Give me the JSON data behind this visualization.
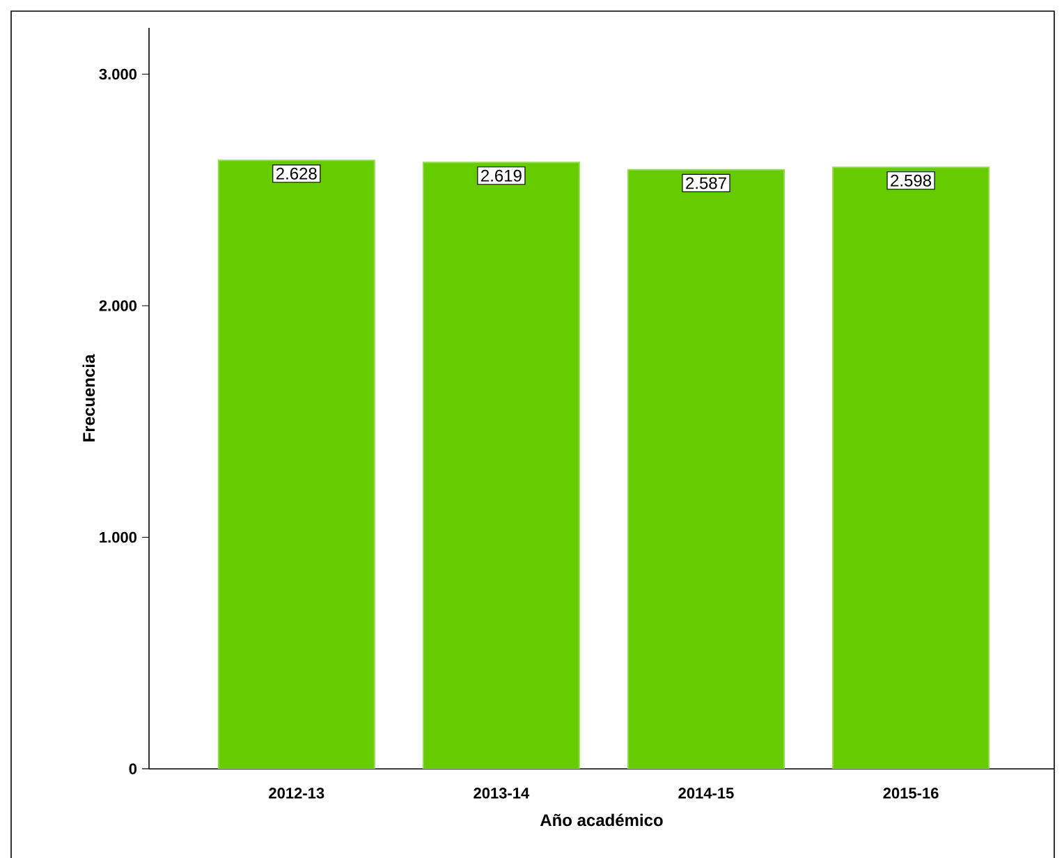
{
  "chart_data": {
    "type": "bar",
    "xlabel": "Año académico",
    "ylabel": "Frecuencia",
    "categories": [
      "2012-13",
      "2013-14",
      "2014-15",
      "2015-16"
    ],
    "values": [
      2628,
      2619,
      2587,
      2598
    ],
    "value_labels": [
      "2.628",
      "2.619",
      "2.587",
      "2.598"
    ],
    "color": "#66cc00",
    "ylim": [
      0,
      3200
    ],
    "yticks": [
      {
        "value": 0,
        "label": "0"
      },
      {
        "value": 1000,
        "label": "1.000"
      },
      {
        "value": 2000,
        "label": "2.000"
      },
      {
        "value": 3000,
        "label": "3.000"
      }
    ],
    "grid": false
  }
}
